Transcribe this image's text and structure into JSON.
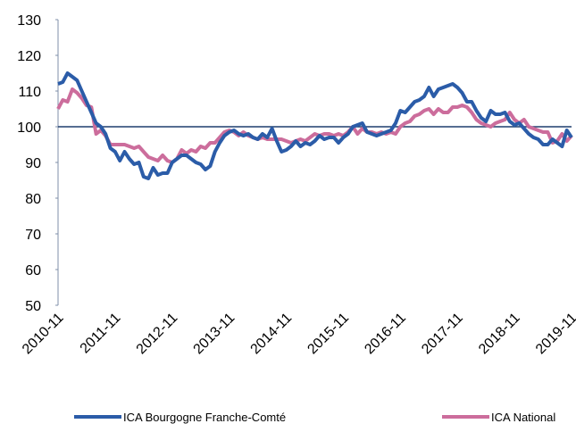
{
  "chart_data": {
    "type": "line",
    "categories": [
      "2010-11",
      null,
      null,
      null,
      null,
      null,
      null,
      null,
      null,
      null,
      null,
      null,
      "2011-11",
      null,
      null,
      null,
      null,
      null,
      null,
      null,
      null,
      null,
      null,
      null,
      "2012-11",
      null,
      null,
      null,
      null,
      null,
      null,
      null,
      null,
      null,
      null,
      null,
      "2013-11",
      null,
      null,
      null,
      null,
      null,
      null,
      null,
      null,
      null,
      null,
      null,
      "2014-11",
      null,
      null,
      null,
      null,
      null,
      null,
      null,
      null,
      null,
      null,
      null,
      "2015-11",
      null,
      null,
      null,
      null,
      null,
      null,
      null,
      null,
      null,
      null,
      null,
      "2016-11",
      null,
      null,
      null,
      null,
      null,
      null,
      null,
      null,
      null,
      null,
      null,
      "2017-11",
      null,
      null,
      null,
      null,
      null,
      null,
      null,
      null,
      null,
      null,
      null,
      "2018-11",
      null,
      null,
      null,
      null,
      null,
      null,
      null,
      null,
      null,
      null,
      null,
      "2019-11"
    ],
    "series": [
      {
        "name": "ICA Bourgogne Franche-Comté",
        "color": "#2b5ca8",
        "values": [
          112,
          112.5,
          115,
          114,
          113,
          110,
          107,
          104,
          101,
          100,
          98,
          94,
          93,
          90.5,
          93,
          91,
          89.5,
          90,
          86,
          85.5,
          88.5,
          86.5,
          87,
          87,
          90,
          91,
          92,
          92,
          91,
          90,
          89.5,
          88,
          89,
          93,
          95.5,
          97.5,
          98.5,
          99,
          98,
          97.5,
          98,
          97,
          96.5,
          98,
          97,
          99.5,
          96,
          93,
          93.5,
          94.5,
          96,
          94.5,
          95.5,
          95,
          96,
          97.5,
          96.5,
          97,
          97,
          95.5,
          97,
          98,
          100,
          100.5,
          101,
          98.5,
          98,
          97.5,
          98,
          98.5,
          99,
          101,
          104.5,
          104,
          105.5,
          107,
          107.5,
          108.5,
          111,
          108.5,
          110.5,
          111,
          111.5,
          112,
          111,
          109.5,
          107,
          107,
          104.5,
          102.5,
          101.5,
          104.5,
          103.5,
          103.5,
          104,
          101.5,
          100.5,
          101,
          99.5,
          98,
          97,
          96.5,
          95,
          95,
          96.5,
          95.5,
          94.5,
          99,
          97
        ]
      },
      {
        "name": "ICA National",
        "color": "#cc6d9c",
        "values": [
          105,
          107.5,
          107,
          110.5,
          109.5,
          108,
          106,
          105.5,
          98,
          99,
          97.5,
          95,
          95,
          95,
          95,
          94.5,
          94,
          94.5,
          93,
          91.5,
          91,
          90.5,
          92,
          90.5,
          90,
          91,
          93.5,
          92.5,
          93.5,
          93,
          94.5,
          94,
          95.5,
          95.5,
          97,
          98.5,
          99,
          98.5,
          97.5,
          98.5,
          97.5,
          97,
          96.5,
          97,
          96.5,
          96.5,
          96.5,
          96.5,
          96,
          95.5,
          96,
          96.5,
          96,
          97,
          98,
          97.5,
          98,
          98,
          97.5,
          98,
          97.5,
          98.5,
          100,
          98,
          99.5,
          98.5,
          98.5,
          98,
          98.5,
          98,
          98.5,
          98,
          100,
          101,
          101.5,
          103,
          103.5,
          104.5,
          105,
          103.5,
          105,
          104,
          104,
          105.5,
          105.5,
          106,
          105.5,
          104,
          102,
          101,
          100.5,
          100,
          101,
          101.5,
          102,
          104,
          102,
          101,
          102,
          100,
          99.5,
          99,
          98.5,
          98.5,
          95.5,
          96,
          98,
          96,
          97.5
        ]
      }
    ],
    "reference_line": 100,
    "reference_color": "#1f3f6e",
    "ylim": [
      50,
      130
    ],
    "yticks": [
      50,
      60,
      70,
      80,
      90,
      100,
      110,
      120,
      130
    ],
    "grid": false,
    "legend": "bottom"
  }
}
